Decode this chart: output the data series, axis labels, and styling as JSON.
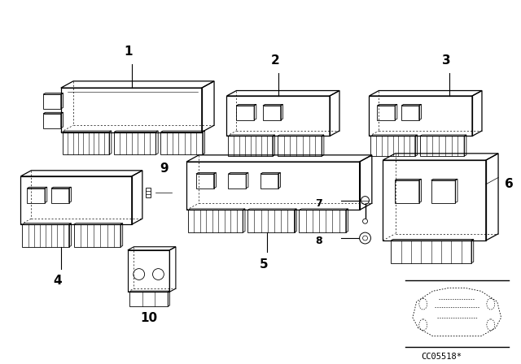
{
  "background_color": "#ffffff",
  "figsize": [
    6.4,
    4.48
  ],
  "dpi": 100,
  "code_text": "CC05518*",
  "line_color": "#000000"
}
